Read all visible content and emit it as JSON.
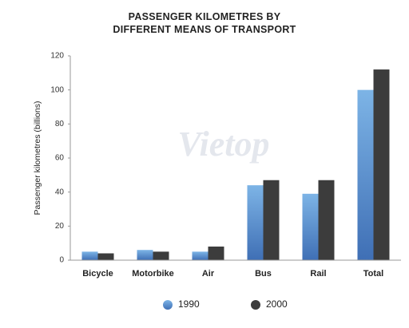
{
  "chart_data": {
    "type": "bar",
    "title": "PASSENGER KILOMETRES BY DIFFERENT MEANS OF TRANSPORT",
    "y_label": "Passenger kilometres (billions)",
    "watermark": "Vietop",
    "categories": [
      "Bicycle",
      "Motorbike",
      "Air",
      "Bus",
      "Rail",
      "Total"
    ],
    "series": [
      {
        "name": "1990",
        "color": "#5b93d3",
        "values": [
          5,
          6,
          5,
          44,
          39,
          100
        ]
      },
      {
        "name": "2000",
        "color": "#3c3c3c",
        "values": [
          4,
          5,
          8,
          47,
          47,
          112
        ]
      }
    ],
    "ylim": [
      0,
      120
    ],
    "yticks": [
      0,
      20,
      40,
      60,
      80,
      100,
      120
    ],
    "grid": false
  }
}
